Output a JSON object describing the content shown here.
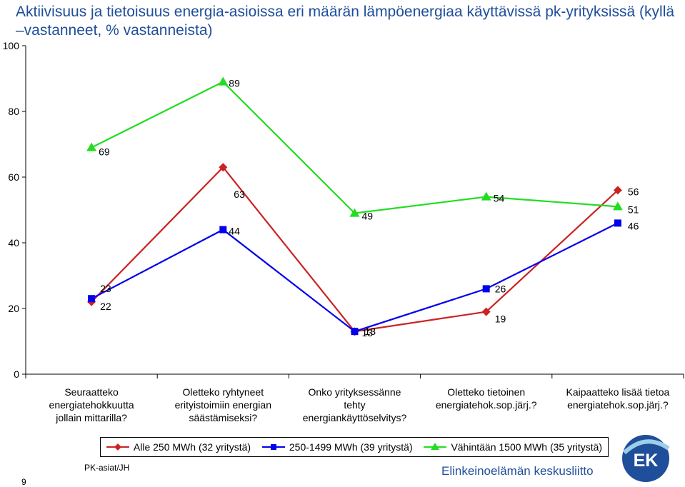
{
  "title": "Aktiivisuus ja tietoisuus energia-asioissa eri määrän lämpöenergiaa käyttävissä pk-yrityksissä (kyllä –vastanneet, % vastanneista)",
  "chart_data": {
    "type": "line",
    "categories": [
      [
        "Seuraatteko",
        "energiatehokkuutta",
        "jollain mittarilla?"
      ],
      [
        "Oletteko ryhtyneet",
        "erityistoimiin energian",
        "säästämiseksi?"
      ],
      [
        "Onko yrityksessänne",
        "tehty",
        "energiankäyttöselvitys?"
      ],
      [
        "Oletteko tietoinen",
        "energiatehok.sop.järj.?"
      ],
      [
        "Kaipaatteko lisää tietoa",
        "energiatehok.sop.järj.?"
      ]
    ],
    "ylim": [
      0,
      100
    ],
    "yticks": [
      0,
      20,
      40,
      60,
      80,
      100
    ],
    "grid": false,
    "legend_position": "bottom",
    "series": [
      {
        "name": "Alle 250 MWh (32 yritystä)",
        "values": [
          22,
          63,
          13,
          19,
          56
        ],
        "color": "#cc2222",
        "marker": "diamond"
      },
      {
        "name": "250-1499 MWh (39 yritystä)",
        "values": [
          23,
          44,
          13,
          26,
          46
        ],
        "color": "#0000ee",
        "marker": "square"
      },
      {
        "name": "Vähintään 1500 MWh (35 yritystä)",
        "values": [
          69,
          89,
          49,
          54,
          51
        ],
        "color": "#22dd22",
        "marker": "triangle"
      }
    ]
  },
  "footer": {
    "page_number": "9",
    "author_tag": "PK-asiat/JH",
    "organization": "Elinkeinoelämän keskusliitto",
    "logo_text": "EK"
  }
}
